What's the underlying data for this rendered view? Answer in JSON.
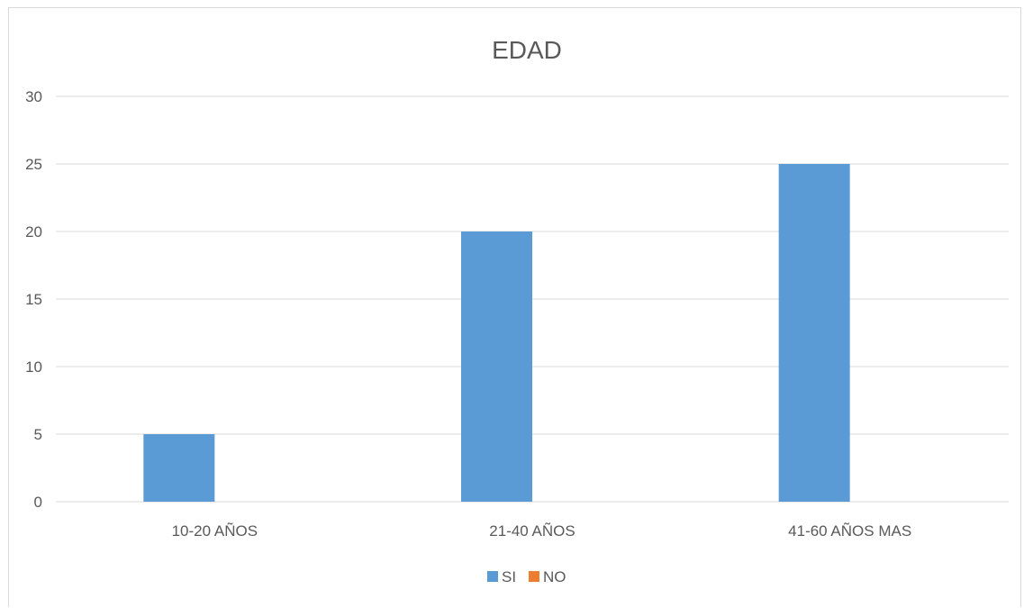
{
  "chart_data": {
    "type": "bar",
    "title": "EDAD",
    "xlabel": "",
    "ylabel": "",
    "categories": [
      "10-20 AÑOS",
      "21-40 AÑOS",
      "41-60 AÑOS MAS"
    ],
    "series": [
      {
        "name": "SI",
        "values": [
          5,
          20,
          25
        ],
        "color": "#5b9bd5"
      },
      {
        "name": "NO",
        "values": [
          0,
          0,
          0
        ],
        "color": "#ed7d31"
      }
    ],
    "ylim": [
      0,
      30
    ],
    "yticks": [
      0,
      5,
      10,
      15,
      20,
      25,
      30
    ],
    "grid": true,
    "legend_position": "bottom",
    "colors": {
      "grid": "#d9d9d9",
      "axis_text": "#595959",
      "title_text": "#595959"
    }
  }
}
